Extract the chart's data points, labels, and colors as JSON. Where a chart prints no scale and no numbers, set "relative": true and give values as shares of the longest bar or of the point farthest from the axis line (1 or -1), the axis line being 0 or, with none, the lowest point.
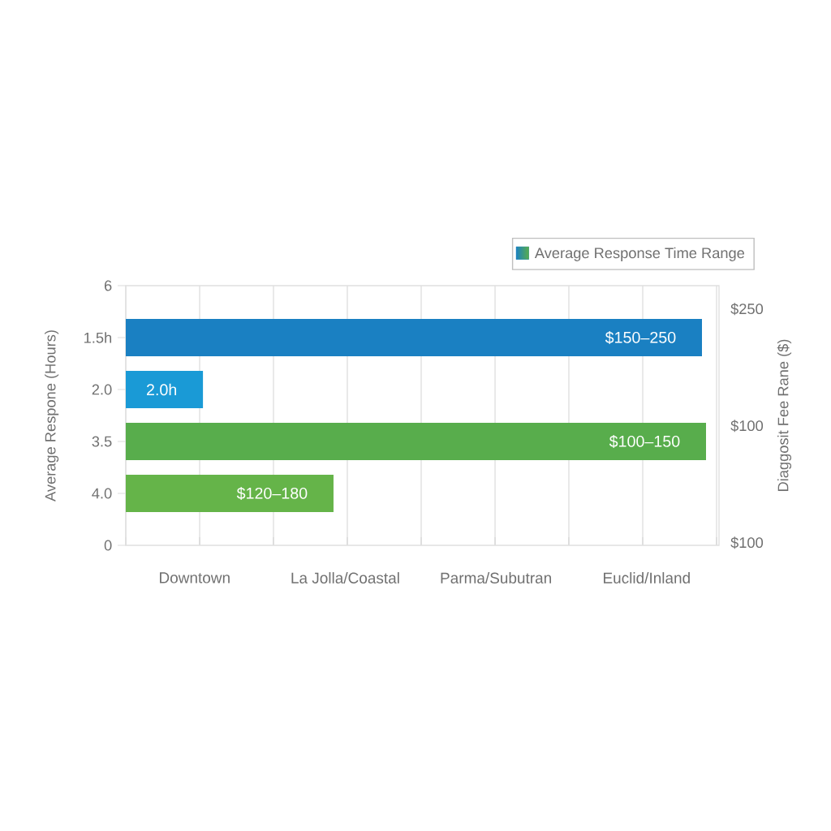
{
  "chart_data": {
    "type": "bar",
    "orientation": "horizontal",
    "relative": true,
    "ylabel": "Average Respone (Hours)",
    "categories": [
      "6",
      "1.5h",
      "2.0",
      "3.5",
      "4.0",
      "0"
    ],
    "series": [
      {
        "name": "Average Response Time Range",
        "colors": [
          null,
          "#1a80c2",
          "#1a9ad6",
          "#58ad4c",
          "#65b449",
          null
        ],
        "values": [
          null,
          0.993,
          0.133,
          1,
          0.358,
          null
        ]
      }
    ],
    "annotations": [
      "Downtown",
      "La Jolla/Coastal",
      "Parma/Subutran",
      "Euclid/Inland",
      "$250",
      "$100",
      "$100",
      "Diaggosit Fee Rane ($)",
      {
        "text": "$150–250",
        "y": "1.5h"
      },
      {
        "text": "2.0h",
        "y": "2.0"
      },
      {
        "text": "$100–150",
        "y": "3.5"
      },
      {
        "text": "$120–180",
        "y": "4.0"
      }
    ],
    "grid": "x",
    "legend": "top right"
  }
}
